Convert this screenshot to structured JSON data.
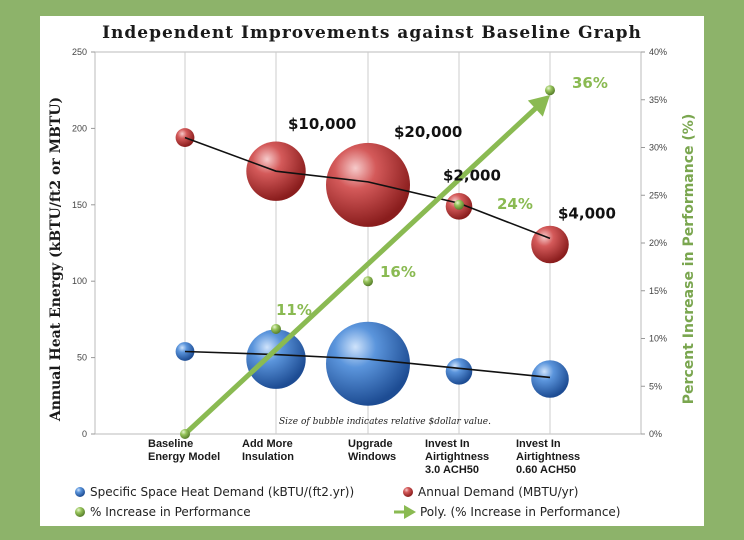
{
  "chart_data": {
    "type": "bubble",
    "title": "Independent Improvements against Baseline Graph",
    "categories": [
      [
        "Baseline",
        "Energy Model"
      ],
      [
        "Add More",
        "Insulation"
      ],
      [
        "Upgrade",
        "Windows"
      ],
      [
        "Invest In",
        "Airtightness",
        "3.0 ACH50"
      ],
      [
        "Invest In",
        "Airtightness",
        "0.60 ACH50"
      ]
    ],
    "ylabel": "Annual Heat Energy (kBTU/ft2 or MBTU)",
    "ylim": [
      0,
      250
    ],
    "yticks": [
      "0",
      "50",
      "100",
      "150",
      "200",
      "250"
    ],
    "y2label": "Percent Increase in Performance (%)",
    "y2lim": [
      0,
      40
    ],
    "y2ticks": [
      "0%",
      "5%",
      "10%",
      "15%",
      "20%",
      "25%",
      "30%",
      "35%",
      "40%"
    ],
    "series": [
      {
        "name": "Specific Space  Heat Demand (kBTU/(ft2.yr))",
        "color": "#3b74c4",
        "axis": "left",
        "values": [
          54,
          49,
          46,
          41,
          36
        ],
        "sizes": [
          1,
          10,
          20,
          2,
          4
        ],
        "trend": [
          54,
          52,
          49,
          43,
          37
        ]
      },
      {
        "name": "Annual Demand (MBTU/yr)",
        "color": "#c43a3a",
        "axis": "left",
        "values": [
          194,
          172,
          163,
          149,
          124
        ],
        "sizes": [
          1,
          10,
          20,
          2,
          4
        ],
        "trend": [
          194,
          172,
          165,
          151,
          128
        ]
      },
      {
        "name": "% Increase in Performance",
        "color": "#8aba52",
        "axis": "right",
        "values": [
          0,
          11,
          16,
          24,
          36
        ]
      },
      {
        "name": "Poly. (% Increase in Performance)",
        "color": "#8aba52",
        "axis": "right",
        "values": [
          0,
          9,
          18,
          27,
          35.5
        ]
      }
    ],
    "cost_labels": [
      "",
      "$10,000",
      "$20,000",
      "$2,000",
      "$4,000"
    ],
    "pct_labels": [
      "",
      "11%",
      "16%",
      "24%",
      "36%"
    ],
    "annotation": "Size of bubble indicates relative $dollar value."
  }
}
